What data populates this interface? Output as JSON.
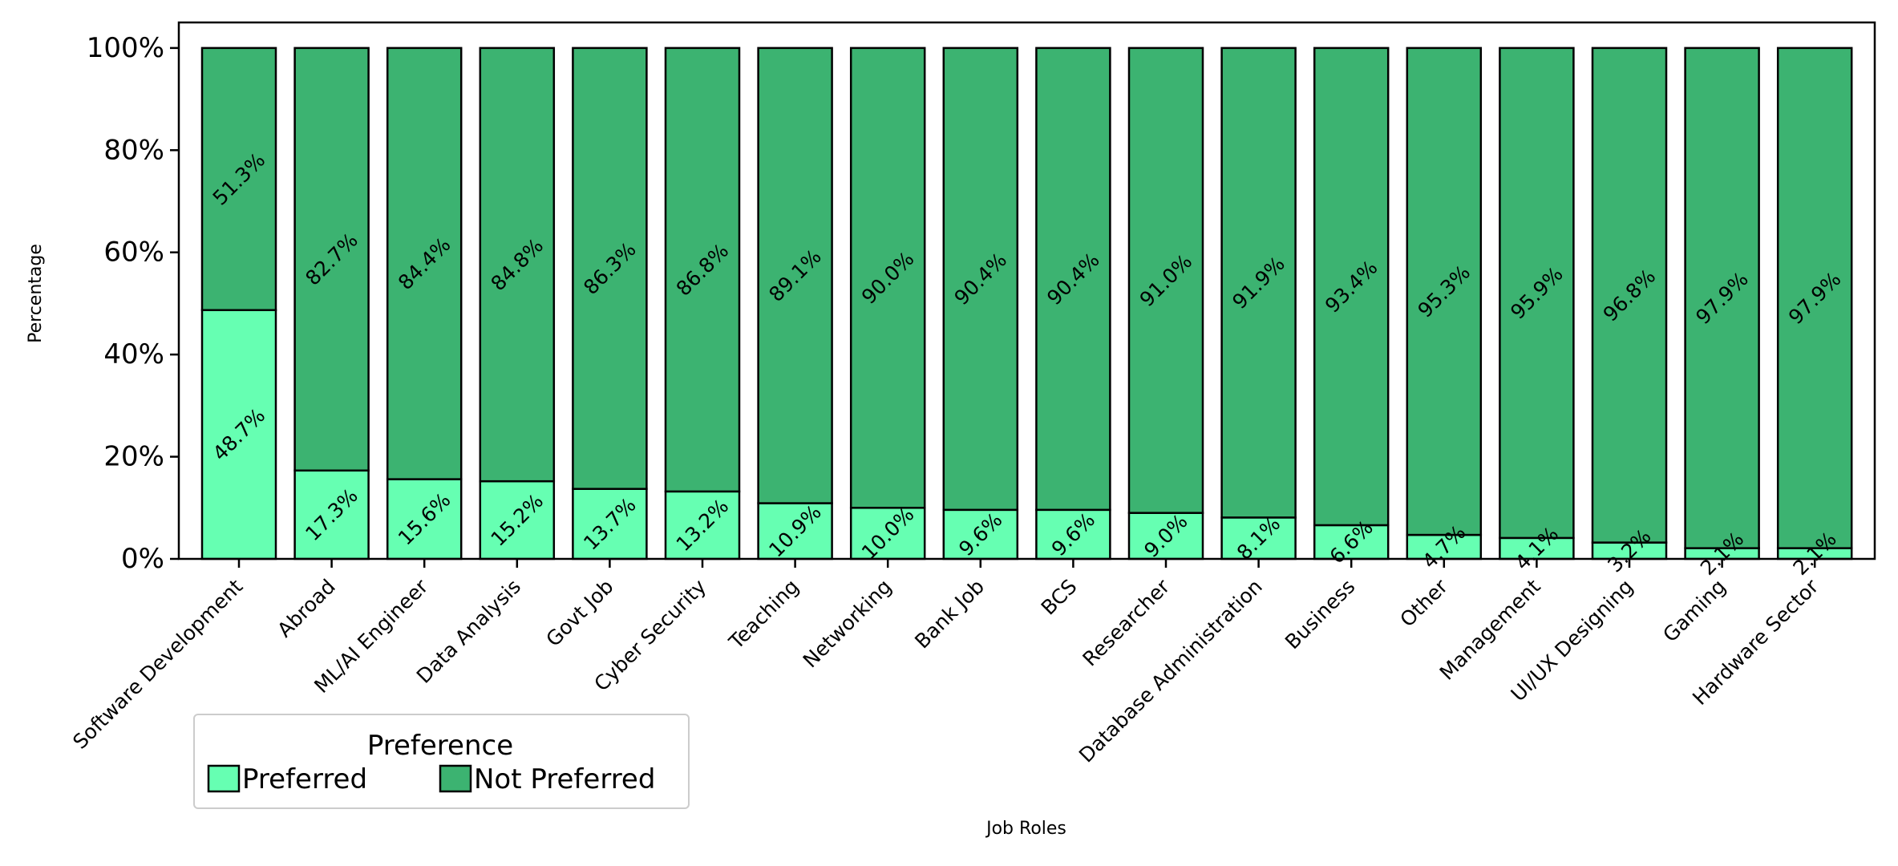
{
  "chart_data": {
    "type": "bar",
    "stacked": true,
    "ylabel": "Percentage",
    "xlabel": "Job Roles",
    "ylim": [
      0,
      105
    ],
    "yticks": [
      "0%",
      "20%",
      "40%",
      "60%",
      "80%",
      "100%"
    ],
    "categories": [
      "Software Development",
      "Abroad",
      "ML/AI Engineer",
      "Data Analysis",
      "Govt Job",
      "Cyber Security",
      "Teaching",
      "Networking",
      "Bank Job",
      "BCS",
      "Researcher",
      "Database Administration",
      "Business",
      "Other",
      "Management",
      "UI/UX Designing",
      "Gaming",
      "Hardware Sector"
    ],
    "series": [
      {
        "name": "Preferred",
        "color": "#66ffb2",
        "values": [
          48.7,
          17.3,
          15.6,
          15.2,
          13.7,
          13.2,
          10.9,
          10.0,
          9.6,
          9.6,
          9.0,
          8.1,
          6.6,
          4.7,
          4.1,
          3.2,
          2.1,
          2.1
        ],
        "labels": [
          "48.7%",
          "17.3%",
          "15.6%",
          "15.2%",
          "13.7%",
          "13.2%",
          "10.9%",
          "10.0%",
          "9.6%",
          "9.6%",
          "9.0%",
          "8.1%",
          "6.6%",
          "4.7%",
          "4.1%",
          "3.2%",
          "2.1%",
          "2.1%"
        ]
      },
      {
        "name": "Not Preferred",
        "color": "#3cb371",
        "values": [
          51.3,
          82.7,
          84.4,
          84.8,
          86.3,
          86.8,
          89.1,
          90.0,
          90.4,
          90.4,
          91.0,
          91.9,
          93.4,
          95.3,
          95.9,
          96.8,
          97.9,
          97.9
        ],
        "labels": [
          "51.3%",
          "82.7%",
          "84.4%",
          "84.8%",
          "86.3%",
          "86.8%",
          "89.1%",
          "90.0%",
          "90.4%",
          "90.4%",
          "91.0%",
          "91.9%",
          "93.4%",
          "95.3%",
          "95.9%",
          "96.8%",
          "97.9%",
          "97.9%"
        ]
      }
    ],
    "legend": {
      "title": "Preference",
      "placement": "below-left",
      "entries": [
        "Preferred",
        "Not Preferred"
      ]
    },
    "grid": false
  }
}
